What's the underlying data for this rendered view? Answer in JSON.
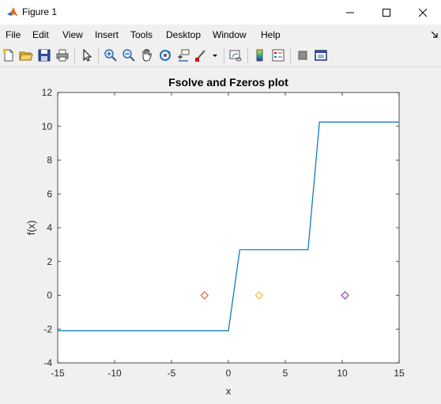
{
  "window": {
    "title": "Figure 1"
  },
  "menu": [
    "File",
    "Edit",
    "View",
    "Insert",
    "Tools",
    "Desktop",
    "Window",
    "Help"
  ],
  "toolbar": {
    "icons": [
      "new-figure-icon",
      "open-file-icon",
      "save-icon",
      "print-icon",
      "edit-plot-arrow-icon",
      "zoom-in-icon",
      "zoom-out-icon",
      "pan-hand-icon",
      "rotate-3d-icon",
      "data-cursor-icon",
      "brush-icon",
      "link-plot-icon",
      "insert-colorbar-icon",
      "insert-legend-icon",
      "hide-plot-tools-icon",
      "show-plot-tools-icon"
    ]
  },
  "chart_data": {
    "type": "line",
    "title": "Fsolve and Fzeros plot",
    "xlabel": "x",
    "ylabel": "f(x)",
    "xlim": [
      -15,
      15
    ],
    "ylim": [
      -4,
      12
    ],
    "xticks": [
      -15,
      -10,
      -5,
      0,
      5,
      10,
      15
    ],
    "yticks": [
      -4,
      -2,
      0,
      2,
      4,
      6,
      8,
      10,
      12
    ],
    "grid": false,
    "series": [
      {
        "color": "#0072bd",
        "x": [
          -15,
          0,
          1,
          7,
          8,
          15
        ],
        "y": [
          -2.1,
          -2.1,
          2.7,
          2.7,
          10.25,
          10.25
        ]
      }
    ],
    "markers": [
      {
        "x": -2.1,
        "y": 0,
        "color": "#d95319",
        "shape": "diamond"
      },
      {
        "x": 2.7,
        "y": 0,
        "color": "#edb120",
        "shape": "diamond"
      },
      {
        "x": 10.25,
        "y": 0,
        "color": "#7e2f8e",
        "shape": "diamond"
      }
    ]
  }
}
